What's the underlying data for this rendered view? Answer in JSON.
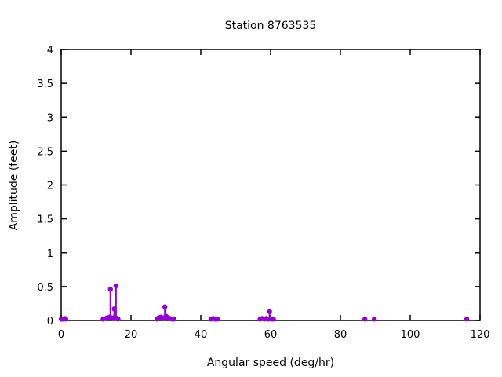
{
  "window": {
    "background": "#ffffff"
  },
  "chart_data": {
    "type": "scatter",
    "style": "impulses+points",
    "title": "Station 8763535",
    "xlabel": "Angular speed (deg/hr)",
    "ylabel": "Amplitude (feet)",
    "xlim": [
      0,
      120
    ],
    "ylim": [
      0,
      4
    ],
    "xticks": [
      0,
      20,
      40,
      60,
      80,
      100,
      120
    ],
    "yticks": [
      0,
      0.5,
      1,
      1.5,
      2,
      2.5,
      3,
      3.5,
      4
    ],
    "grid": false,
    "legend": "none",
    "series_color": "#9400d3",
    "axis_color": "#000000",
    "points": [
      [
        0.0,
        0.02
      ],
      [
        0.5,
        0.02
      ],
      [
        1.0,
        0.03
      ],
      [
        1.3,
        0.02
      ],
      [
        12.0,
        0.02
      ],
      [
        12.8,
        0.03
      ],
      [
        13.3,
        0.04
      ],
      [
        13.8,
        0.05
      ],
      [
        14.1,
        0.46
      ],
      [
        14.4,
        0.04
      ],
      [
        14.9,
        0.03
      ],
      [
        15.2,
        0.17
      ],
      [
        15.4,
        0.05
      ],
      [
        15.7,
        0.51
      ],
      [
        16.0,
        0.03
      ],
      [
        16.3,
        0.02
      ],
      [
        27.5,
        0.02
      ],
      [
        28.0,
        0.04
      ],
      [
        28.5,
        0.05
      ],
      [
        29.0,
        0.04
      ],
      [
        29.6,
        0.03
      ],
      [
        29.7,
        0.2
      ],
      [
        30.1,
        0.06
      ],
      [
        30.6,
        0.04
      ],
      [
        31.1,
        0.03
      ],
      [
        31.7,
        0.02
      ],
      [
        32.3,
        0.02
      ],
      [
        42.9,
        0.02
      ],
      [
        43.5,
        0.03
      ],
      [
        44.1,
        0.02
      ],
      [
        44.8,
        0.02
      ],
      [
        57.0,
        0.02
      ],
      [
        57.6,
        0.03
      ],
      [
        58.2,
        0.02
      ],
      [
        58.8,
        0.03
      ],
      [
        59.4,
        0.02
      ],
      [
        59.7,
        0.13
      ],
      [
        60.3,
        0.02
      ],
      [
        60.8,
        0.02
      ],
      [
        87.0,
        0.02
      ],
      [
        89.7,
        0.02
      ],
      [
        116.2,
        0.02
      ]
    ]
  }
}
